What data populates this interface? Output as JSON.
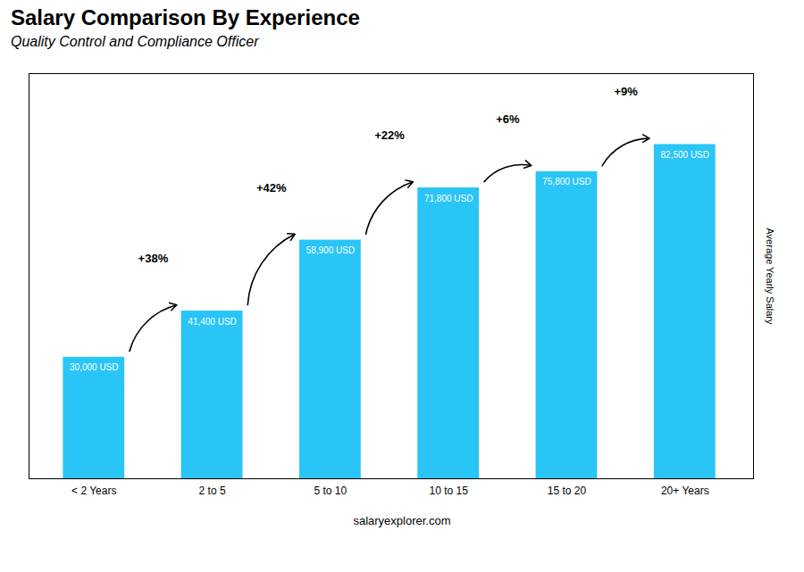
{
  "chart_data": {
    "type": "bar",
    "title": "Salary Comparison By Experience",
    "subtitle": "Quality Control and Compliance Officer",
    "ylabel": "Average Yearly Salary",
    "caption": "salaryexplorer.com",
    "categories": [
      "< 2 Years",
      "2 to 5",
      "5 to 10",
      "10 to 15",
      "15 to 20",
      "20+ Years"
    ],
    "values": [
      30000,
      41400,
      58900,
      71800,
      75800,
      82500
    ],
    "value_labels": [
      "30,000 USD",
      "41,400 USD",
      "58,900 USD",
      "71,800 USD",
      "75,800 USD",
      "82,500 USD"
    ],
    "data_labels": true,
    "annotations": [
      "+38%",
      "+42%",
      "+22%",
      "+6%",
      "+9%"
    ],
    "color": "#29c5f6",
    "ylim": [
      0,
      100000
    ],
    "tick_labels": "x",
    "grid": false
  }
}
